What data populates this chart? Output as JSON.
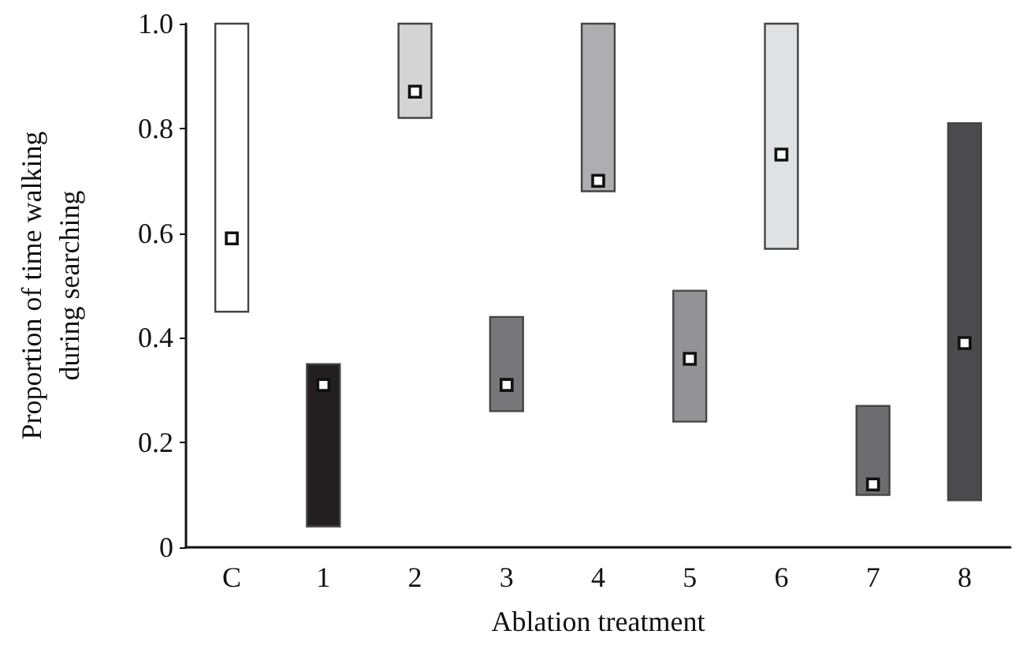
{
  "chart_data": {
    "type": "bar",
    "xlabel": "Ablation treatment",
    "ylabel": "Proportion of time walking\nduring searching",
    "categories": [
      "C",
      "1",
      "2",
      "3",
      "4",
      "5",
      "6",
      "7",
      "8"
    ],
    "series": [
      {
        "values": [
          0.55,
          0.31,
          0.18,
          0.18,
          0.32,
          0.25,
          0.43,
          0.17,
          0.72
        ],
        "base": [
          0.45,
          0.04,
          0.82,
          0.26,
          0.68,
          0.24,
          0.57,
          0.1,
          0.09
        ],
        "colors": [
          "#ffffff",
          "#231f20",
          "#d4d4d4",
          "#77777a",
          "#aeaeb0",
          "#939395",
          "#e0e1e3",
          "#6d6d6f",
          "#4b4b4d"
        ]
      },
      {
        "type": "scatter",
        "x": [
          "C",
          "1",
          "2",
          "3",
          "4",
          "5",
          "6",
          "7",
          "8"
        ],
        "values": [
          0.59,
          0.31,
          0.87,
          0.31,
          0.7,
          0.36,
          0.75,
          0.12,
          0.39
        ],
        "color": "#ffffff",
        "marker": "square"
      }
    ],
    "ylim": [
      0,
      1
    ],
    "yticks": [
      0,
      0.2,
      0.4,
      0.6,
      0.8,
      {
        "value": 1,
        "label": "1.0"
      }
    ],
    "grid": false
  }
}
